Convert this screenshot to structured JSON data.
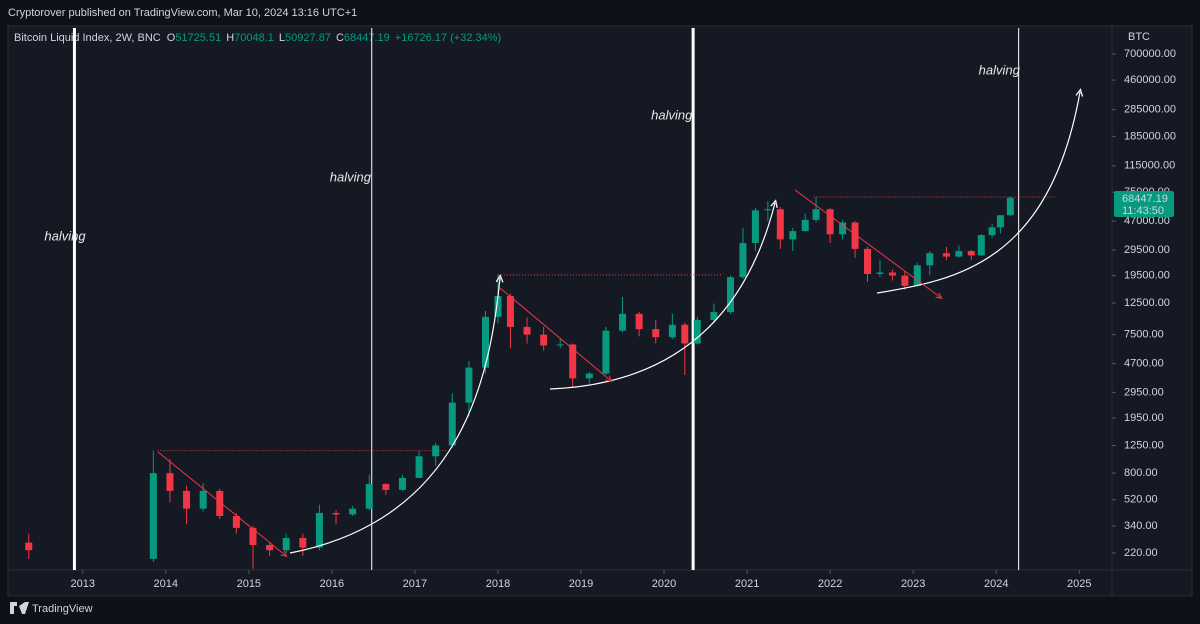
{
  "header": {
    "published": "Cryptorover published on TradingView.com, Mar 10, 2024 13:16 UTC+1"
  },
  "footer": {
    "brand": "TradingView"
  },
  "chart_data": {
    "type": "candlestick",
    "title": "Bitcoin Liquid Index, 2W, BNC",
    "ohlc": [
      {
        "label": "O",
        "value": 51725.51
      },
      {
        "label": "H",
        "value": 70048.1
      },
      {
        "label": "L",
        "value": 50927.87
      },
      {
        "label": "C",
        "value": 68447.19
      }
    ],
    "change": "+16726.17 (+32.34%)",
    "currency": "BTC",
    "countdown": "11:43:50",
    "up_color": "#089981",
    "down_color": "#f23645",
    "log_scale": true,
    "grid": false,
    "xlim": [
      2012.1,
      2025.37
    ],
    "xticks": [
      2013,
      2014,
      2015,
      2016,
      2017,
      2018,
      2019,
      2020,
      2021,
      2022,
      2023,
      2024,
      2025
    ],
    "ylim": [
      167,
      1067000
    ],
    "yticks": [
      {
        "value": 220,
        "label": "220.00"
      },
      {
        "value": 340,
        "label": "340.00"
      },
      {
        "value": 520,
        "label": "520.00"
      },
      {
        "value": 800,
        "label": "800.00"
      },
      {
        "value": 1250,
        "label": "1250.00"
      },
      {
        "value": 1950,
        "label": "1950.00"
      },
      {
        "value": 2950,
        "label": "2950.00"
      },
      {
        "value": 4700,
        "label": "4700.00"
      },
      {
        "value": 7500,
        "label": "7500.00"
      },
      {
        "value": 12500,
        "label": "12500.00"
      },
      {
        "value": 19500,
        "label": "19500.00"
      },
      {
        "value": 29500,
        "label": "29500.00"
      },
      {
        "value": 47000,
        "label": "47000.00"
      },
      {
        "value": 75000,
        "label": "75000.00"
      },
      {
        "value": 115000,
        "label": "115000.00"
      },
      {
        "value": 185000,
        "label": "185000.00"
      },
      {
        "value": 285000,
        "label": "285000.00"
      },
      {
        "value": 460000,
        "label": "460000.00"
      },
      {
        "value": 700000,
        "label": "700000.00"
      }
    ],
    "x": [
      2012.35,
      2013.85,
      2014.05,
      2014.25,
      2014.45,
      2014.65,
      2014.85,
      2015.05,
      2015.25,
      2015.45,
      2015.65,
      2015.85,
      2016.05,
      2016.25,
      2016.45,
      2016.65,
      2016.85,
      2017.05,
      2017.25,
      2017.45,
      2017.65,
      2017.85,
      2018.0,
      2018.15,
      2018.35,
      2018.55,
      2018.75,
      2018.9,
      2019.1,
      2019.3,
      2019.5,
      2019.7,
      2019.9,
      2020.1,
      2020.25,
      2020.4,
      2020.6,
      2020.8,
      2020.95,
      2021.1,
      2021.25,
      2021.4,
      2021.55,
      2021.7,
      2021.83,
      2022.0,
      2022.15,
      2022.3,
      2022.45,
      2022.6,
      2022.75,
      2022.9,
      2023.05,
      2023.2,
      2023.4,
      2023.55,
      2023.7,
      2023.82,
      2023.95,
      2024.05,
      2024.17
    ],
    "open": [
      260,
      200,
      800,
      600,
      450,
      600,
      400,
      330,
      250,
      230,
      280,
      240,
      420,
      410,
      450,
      670,
      610,
      740,
      1050,
      1250,
      2500,
      4400,
      10000,
      14000,
      8500,
      7500,
      6300,
      6400,
      3700,
      4000,
      8000,
      10500,
      8200,
      7200,
      8800,
      6500,
      9500,
      10800,
      19000,
      33000,
      56000,
      57000,
      35000,
      40000,
      48000,
      57000,
      38000,
      46000,
      30000,
      20000,
      20500,
      19500,
      16500,
      23000,
      28000,
      26500,
      29000,
      27000,
      37500,
      42500,
      51725.51
    ],
    "high": [
      300,
      1150,
      1000,
      650,
      680,
      620,
      420,
      340,
      260,
      300,
      300,
      480,
      440,
      470,
      780,
      680,
      780,
      1150,
      1300,
      2900,
      4900,
      11000,
      19800,
      14500,
      9900,
      8500,
      7000,
      6500,
      4100,
      8500,
      13800,
      10800,
      9500,
      10500,
      9100,
      10000,
      12400,
      19500,
      42000,
      58000,
      64800,
      59000,
      42000,
      53000,
      69000,
      58000,
      48000,
      47000,
      31000,
      25000,
      21500,
      21000,
      24000,
      29000,
      31000,
      31800,
      29500,
      38000,
      45000,
      49000,
      70048.1
    ],
    "low": [
      200,
      190,
      500,
      350,
      430,
      380,
      300,
      170,
      210,
      220,
      210,
      230,
      350,
      400,
      440,
      560,
      600,
      750,
      900,
      1200,
      2000,
      4000,
      9000,
      6000,
      6500,
      5800,
      6000,
      3200,
      3400,
      3900,
      7800,
      7300,
      6500,
      7000,
      3900,
      6400,
      9000,
      10500,
      18500,
      29000,
      47000,
      30000,
      29000,
      40000,
      46000,
      33000,
      35000,
      26000,
      17600,
      19000,
      18000,
      15500,
      16400,
      19600,
      25000,
      26000,
      25000,
      26800,
      36000,
      38500,
      50927.87
    ],
    "close": [
      230,
      800,
      600,
      450,
      600,
      400,
      330,
      250,
      230,
      280,
      240,
      420,
      410,
      450,
      670,
      610,
      740,
      1050,
      1250,
      2500,
      4400,
      10000,
      14000,
      8500,
      7500,
      6300,
      6400,
      3700,
      4000,
      8000,
      10500,
      8200,
      7200,
      8800,
      6500,
      9500,
      10800,
      19000,
      33000,
      56000,
      57000,
      35000,
      40000,
      48000,
      57000,
      38000,
      46000,
      30000,
      20000,
      20500,
      19500,
      16500,
      23000,
      28000,
      26500,
      29000,
      27000,
      37500,
      42500,
      51725.51,
      68447.19
    ],
    "halvings": [
      {
        "x": 2012.9,
        "label": "halving"
      },
      {
        "x": 2016.48,
        "label": "halving"
      },
      {
        "x": 2020.35,
        "label": "halving"
      },
      {
        "x": 2024.27,
        "label": "halving"
      }
    ],
    "levels": [
      {
        "value": 1150,
        "x": [
          2013.9,
          2017.4
        ]
      },
      {
        "value": 19700,
        "x": [
          2018.0,
          2020.7
        ]
      },
      {
        "value": 69500,
        "x": [
          2021.8,
          2024.7
        ]
      }
    ]
  }
}
